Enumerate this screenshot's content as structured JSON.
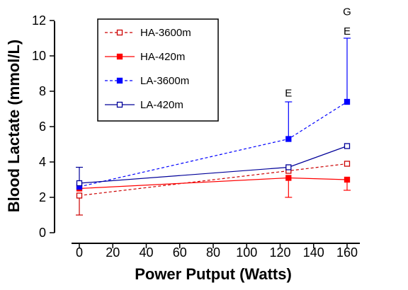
{
  "chart_data": {
    "type": "line",
    "title": "",
    "xlabel": "Power Putput (Watts)",
    "ylabel": "Blood Lactate (mmol/L)",
    "xlim": [
      0,
      160
    ],
    "ylim": [
      0,
      12
    ],
    "xticks": [
      "0",
      "20",
      "40",
      "60",
      "80",
      "100",
      "120",
      "140",
      "160"
    ],
    "yticks": [
      "0",
      "2",
      "4",
      "6",
      "8",
      "10",
      "12"
    ],
    "legend_position": "top-left",
    "grid": false,
    "series": [
      {
        "name": "HA-3600m",
        "color": "#cc0000",
        "line": "dashed",
        "marker": "open-square",
        "x": [
          0,
          125,
          160
        ],
        "y": [
          2.1,
          3.5,
          3.9
        ],
        "error": [
          [
            1.1,
            0
          ],
          [
            0,
            0
          ],
          [
            0,
            0
          ]
        ]
      },
      {
        "name": "HA-420m",
        "color": "#ff0000",
        "line": "solid",
        "marker": "filled-square",
        "x": [
          0,
          125,
          160
        ],
        "y": [
          2.5,
          3.1,
          3.0
        ],
        "error": [
          [
            0,
            0
          ],
          [
            1.1,
            0
          ],
          [
            0.6,
            0
          ]
        ]
      },
      {
        "name": "LA-3600m",
        "color": "#0000ff",
        "line": "dashed",
        "marker": "filled-square",
        "x": [
          0,
          125,
          160
        ],
        "y": [
          2.6,
          5.3,
          7.4
        ],
        "error": [
          [
            0,
            0
          ],
          [
            0,
            2.1
          ],
          [
            0,
            3.6
          ]
        ]
      },
      {
        "name": "LA-420m",
        "color": "#000099",
        "line": "solid",
        "marker": "open-square",
        "x": [
          0,
          125,
          160
        ],
        "y": [
          2.8,
          3.7,
          4.9
        ],
        "error": [
          [
            0,
            0.9
          ],
          [
            0,
            0
          ],
          [
            0,
            0
          ]
        ]
      }
    ],
    "annotations": [
      {
        "text": "E",
        "x": 125,
        "y": 7.9
      },
      {
        "text": "E",
        "x": 160,
        "y": 11.4
      },
      {
        "text": "G",
        "x": 160,
        "y": 12.5
      }
    ]
  }
}
